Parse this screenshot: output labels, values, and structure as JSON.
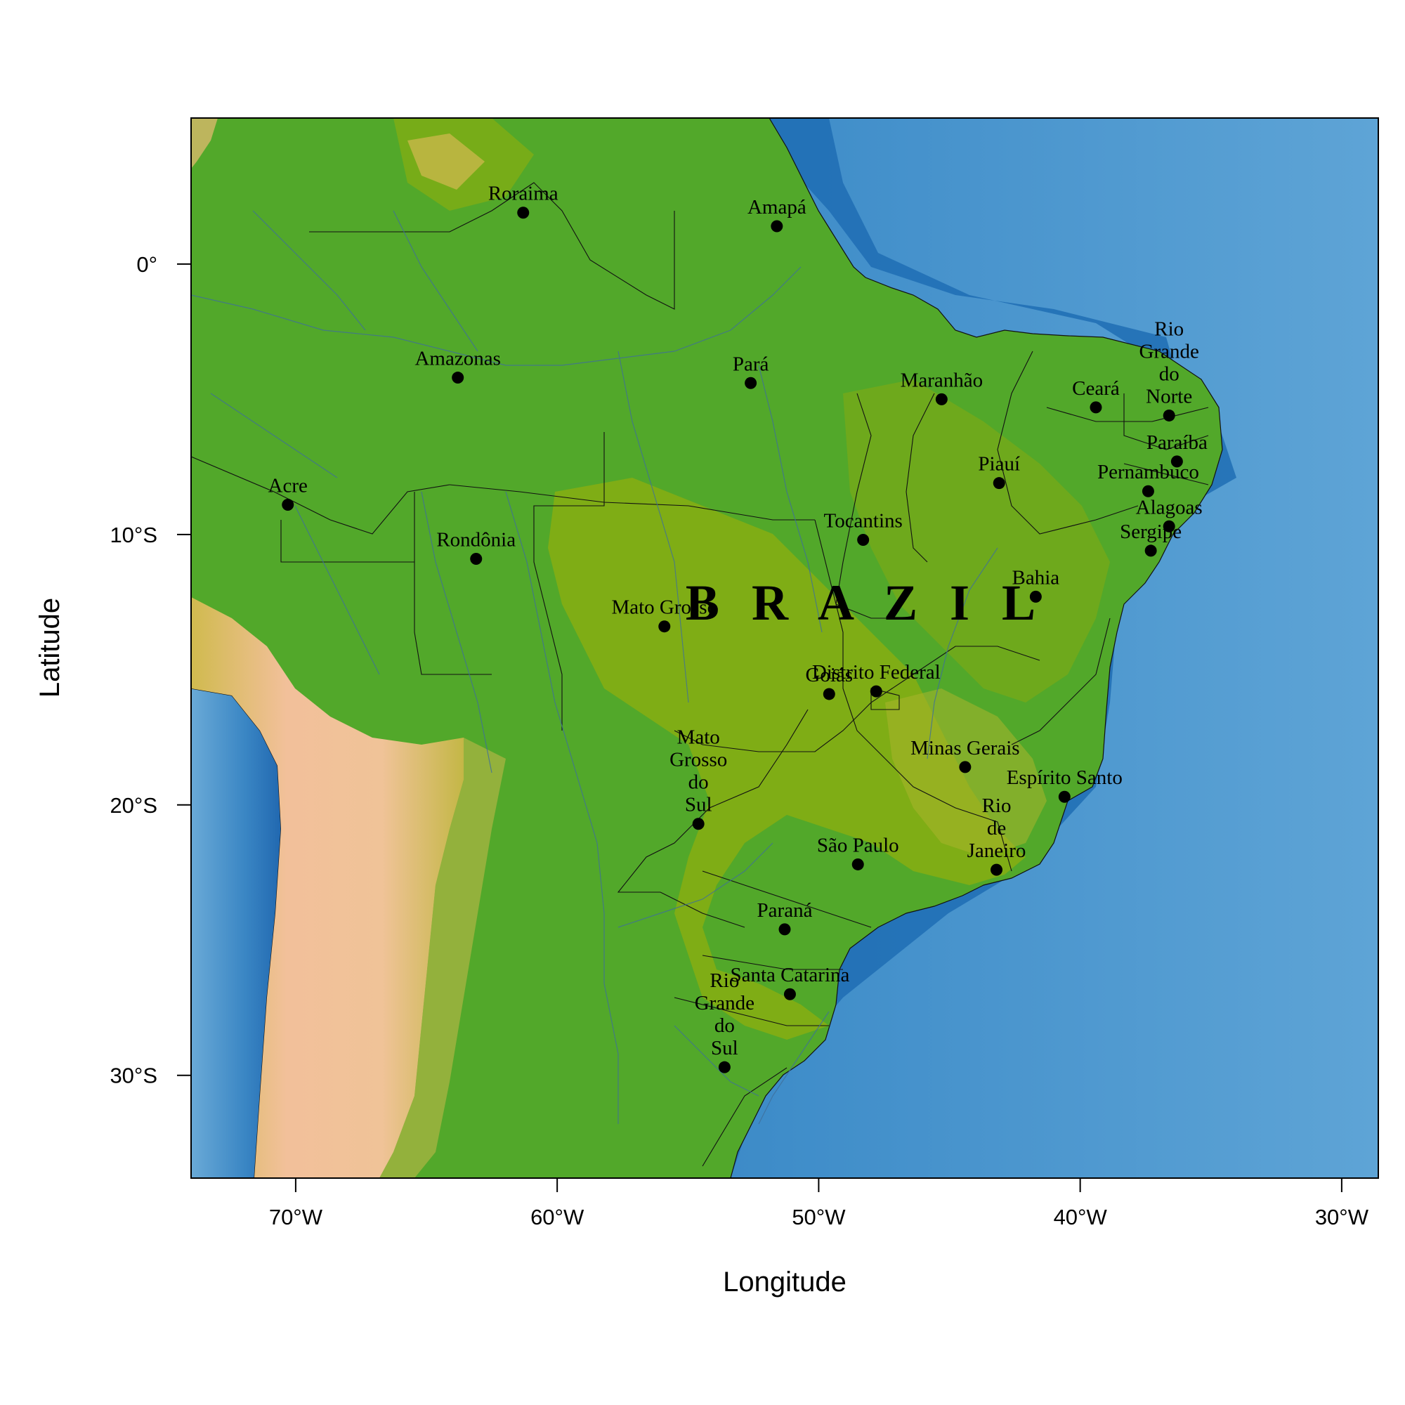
{
  "map": {
    "country_label": "B R A Z I L",
    "x_axis_title": "Longitude",
    "y_axis_title": "Latitude",
    "x_ticks": [
      {
        "lon": -70,
        "label": "70°W"
      },
      {
        "lon": -60,
        "label": "60°W"
      },
      {
        "lon": -50,
        "label": "50°W"
      },
      {
        "lon": -40,
        "label": "40°W"
      },
      {
        "lon": -30,
        "label": "30°W"
      }
    ],
    "y_ticks": [
      {
        "lat": 0,
        "label": "0°"
      },
      {
        "lat": -10,
        "label": "10°S"
      },
      {
        "lat": -20,
        "label": "20°S"
      },
      {
        "lat": -30,
        "label": "30°S"
      }
    ],
    "extent": {
      "lon_min": -74.0,
      "lon_max": -28.6,
      "lat_min": -33.8,
      "lat_max": 5.4
    },
    "colors": {
      "ocean_deep": "#1f6fb5",
      "ocean_mid": "#3f8cc8",
      "ocean_light": "#6aaad7",
      "lowland": "#52a82a",
      "plateau": "#85ad12",
      "highland": "#c8b84a",
      "andes": "#f0bf96",
      "point": "#000000"
    },
    "states": [
      {
        "name": "Roraima",
        "lines": [
          "Roraima"
        ],
        "lon": -61.3,
        "lat": 1.9
      },
      {
        "name": "Amapá",
        "lines": [
          "Amapá"
        ],
        "lon": -51.6,
        "lat": 1.4
      },
      {
        "name": "Amazonas",
        "lines": [
          "Amazonas"
        ],
        "lon": -63.8,
        "lat": -4.2
      },
      {
        "name": "Pará",
        "lines": [
          "Pará"
        ],
        "lon": -52.6,
        "lat": -4.4
      },
      {
        "name": "Maranhão",
        "lines": [
          "Maranhão"
        ],
        "lon": -45.3,
        "lat": -5.0
      },
      {
        "name": "Ceará",
        "lines": [
          "Ceará"
        ],
        "lon": -39.4,
        "lat": -5.3
      },
      {
        "name": "Rio Grande do Norte",
        "lines": [
          "Rio",
          "Grande",
          "do",
          "Norte"
        ],
        "lon": -36.6,
        "lat": -5.6
      },
      {
        "name": "Paraíba",
        "lines": [
          "Paraíba"
        ],
        "lon": -36.3,
        "lat": -7.3
      },
      {
        "name": "Piauí",
        "lines": [
          "Piauí"
        ],
        "lon": -43.1,
        "lat": -8.1
      },
      {
        "name": "Pernambuco",
        "lines": [
          "Pernambuco"
        ],
        "lon": -37.4,
        "lat": -8.4
      },
      {
        "name": "Alagoas",
        "lines": [
          "Alagoas"
        ],
        "lon": -36.6,
        "lat": -9.7
      },
      {
        "name": "Sergipe",
        "lines": [
          "Sergipe"
        ],
        "lon": -37.3,
        "lat": -10.6
      },
      {
        "name": "Acre",
        "lines": [
          "Acre"
        ],
        "lon": -70.3,
        "lat": -8.9
      },
      {
        "name": "Tocantins",
        "lines": [
          "Tocantins"
        ],
        "lon": -48.3,
        "lat": -10.2
      },
      {
        "name": "Rondônia",
        "lines": [
          "Rondônia"
        ],
        "lon": -63.1,
        "lat": -10.9
      },
      {
        "name": "Bahia",
        "lines": [
          "Bahia"
        ],
        "lon": -41.7,
        "lat": -12.3
      },
      {
        "name": "Mato Grosso",
        "lines": [
          "Mato Grosso"
        ],
        "lon": -55.9,
        "lat": -13.4
      },
      {
        "name": "Goiás",
        "lines": [
          "Goiás"
        ],
        "lon": -49.6,
        "lat": -15.9
      },
      {
        "name": "Distrito Federal",
        "lines": [
          "Distrito Federal"
        ],
        "lon": -47.8,
        "lat": -15.8
      },
      {
        "name": "Minas Gerais",
        "lines": [
          "Minas Gerais"
        ],
        "lon": -44.4,
        "lat": -18.6
      },
      {
        "name": "Espírito Santo",
        "lines": [
          "Espírito Santo"
        ],
        "lon": -40.6,
        "lat": -19.7
      },
      {
        "name": "Mato Grosso do Sul",
        "lines": [
          "Mato",
          "Grosso",
          "do",
          "Sul"
        ],
        "lon": -54.6,
        "lat": -20.7
      },
      {
        "name": "São Paulo",
        "lines": [
          "São Paulo"
        ],
        "lon": -48.5,
        "lat": -22.2
      },
      {
        "name": "Rio de Janeiro",
        "lines": [
          "Rio",
          "de",
          "Janeiro"
        ],
        "lon": -43.2,
        "lat": -22.4
      },
      {
        "name": "Paraná",
        "lines": [
          "Paraná"
        ],
        "lon": -51.3,
        "lat": -24.6
      },
      {
        "name": "Santa Catarina",
        "lines": [
          "Santa Catarina"
        ],
        "lon": -51.1,
        "lat": -27.0
      },
      {
        "name": "Rio Grande do Sul",
        "lines": [
          "Rio",
          "Grande",
          "do",
          "Sul"
        ],
        "lon": -53.6,
        "lat": -29.7
      }
    ]
  }
}
